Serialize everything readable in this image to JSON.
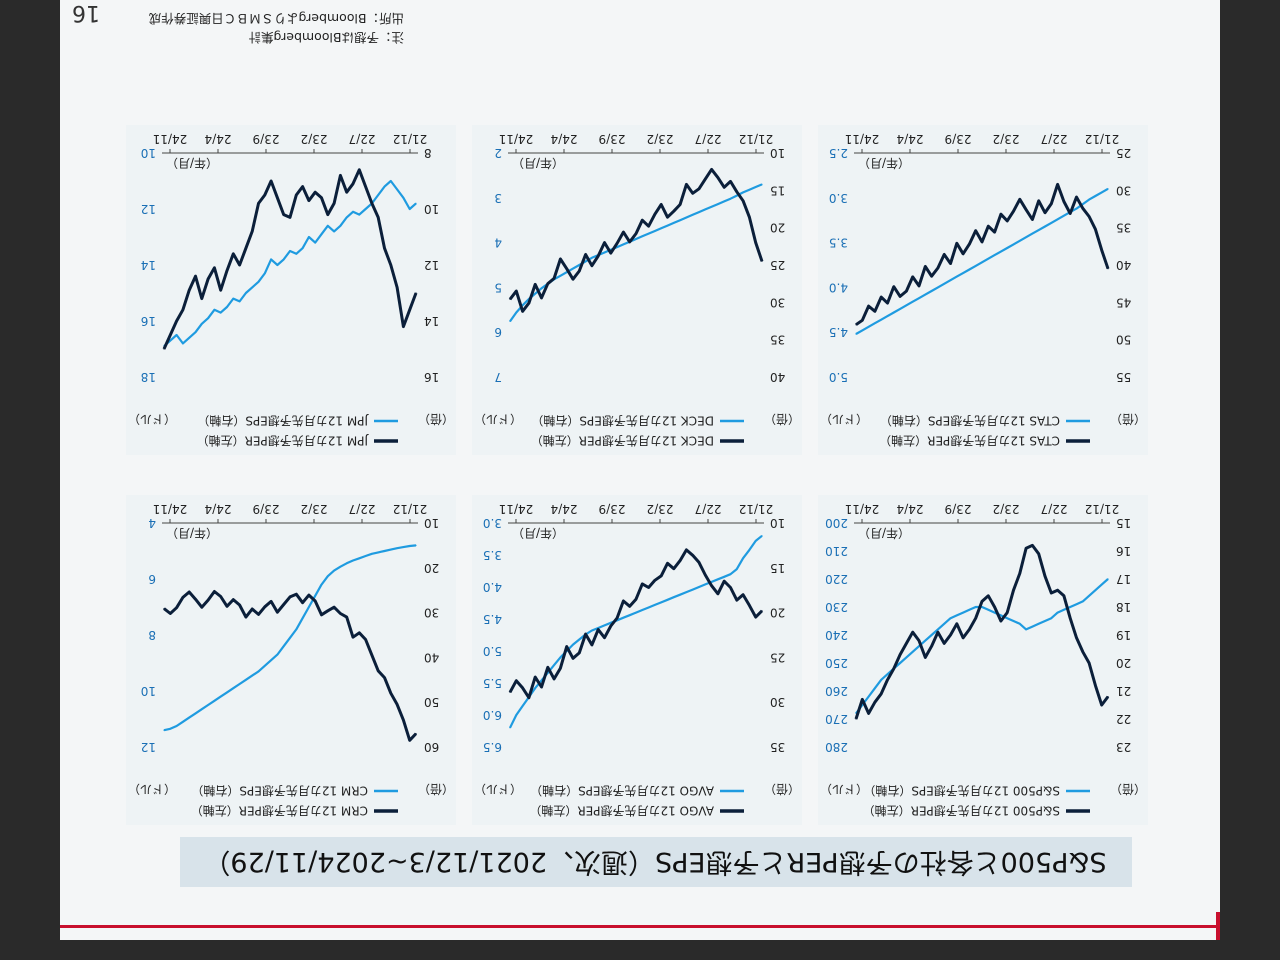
{
  "page": {
    "title": "S&P500と各社の予想PERと予想EPS（週次、2021/12/3~2024/11/29）",
    "page_number": "16",
    "note": "注：予想はBloomberg集計",
    "source": "出所：BloombergよりＳＭＢＣ日興証券作成",
    "colors": {
      "per": "#0b1f3a",
      "eps": "#1f9be0",
      "accent": "#c8102e",
      "banner": "#d8e3ea"
    }
  },
  "chart_data": [
    {
      "type": "line",
      "panel": "top-left",
      "legend": [
        "S&P500 12カ月先予想PER（左軸）",
        "S&P500 12カ月先予想EPS（右軸）"
      ],
      "left_unit": "（倍）",
      "right_unit": "（ドル）",
      "period_label": "（年/月）",
      "x_ticks": [
        "21/12",
        "22/7",
        "23/2",
        "23/9",
        "24/4",
        "24/11"
      ],
      "left_axis": {
        "min": 15,
        "max": 23,
        "ticks": [
          "15",
          "16",
          "17",
          "18",
          "19",
          "20",
          "21",
          "22",
          "23"
        ]
      },
      "right_axis": {
        "min": 200,
        "max": 280,
        "ticks": [
          "200",
          "210",
          "220",
          "230",
          "240",
          "250",
          "260",
          "270",
          "280"
        ]
      },
      "series": [
        {
          "name": "S&P500 12カ月先予想PER",
          "axis": "left",
          "values": [
            21.2,
            21.5,
            20.8,
            20.0,
            19.6,
            19.1,
            18.4,
            17.6,
            17.4,
            17.5,
            16.9,
            16.1,
            15.8,
            15.9,
            16.8,
            17.4,
            18.2,
            18.5,
            18.0,
            17.6,
            17.8,
            18.4,
            18.8,
            19.1,
            18.6,
            19.0,
            19.3,
            18.9,
            19.4,
            19.8,
            19.2,
            18.9,
            19.3,
            19.7,
            20.2,
            20.6,
            21.1,
            21.4,
            21.8,
            21.3,
            22.0
          ]
        },
        {
          "name": "S&P500 12カ月先予想EPS",
          "axis": "right",
          "values": [
            220,
            222,
            224,
            226,
            228,
            229,
            230,
            231,
            232,
            234,
            235,
            236,
            237,
            238,
            236,
            235,
            234,
            233,
            232,
            231,
            230,
            230,
            231,
            232,
            233,
            234,
            236,
            238,
            240,
            242,
            244,
            246,
            248,
            250,
            252,
            254,
            256,
            259,
            262,
            265,
            268
          ]
        }
      ]
    },
    {
      "type": "line",
      "panel": "top-middle",
      "legend": [
        "AVGO 12カ月先予想PER（左軸）",
        "AVGO 12カ月先予想EPS（右軸）"
      ],
      "left_unit": "（倍）",
      "right_unit": "（ドル）",
      "period_label": "（年/月）",
      "x_ticks": [
        "21/12",
        "22/7",
        "23/2",
        "23/9",
        "24/4",
        "24/11"
      ],
      "left_axis": {
        "min": 10,
        "max": 35,
        "ticks": [
          "10",
          "15",
          "20",
          "25",
          "30",
          "35"
        ]
      },
      "right_axis": {
        "min": 3.0,
        "max": 6.5,
        "ticks": [
          "3.0",
          "3.5",
          "4.0",
          "4.5",
          "5.0",
          "5.5",
          "6.0",
          "6.5"
        ]
      },
      "series": [
        {
          "name": "AVGO 12カ月先予想PER",
          "axis": "left",
          "values": [
            19.8,
            20.5,
            19.2,
            18.0,
            18.6,
            17.2,
            16.5,
            17.9,
            17.0,
            15.8,
            14.4,
            13.6,
            13.0,
            14.2,
            15.1,
            14.5,
            15.9,
            16.4,
            17.2,
            16.8,
            18.5,
            19.3,
            18.7,
            20.6,
            21.5,
            22.8,
            21.9,
            23.6,
            22.4,
            24.5,
            25.1,
            23.8,
            26.2,
            27.4,
            26.1,
            28.3,
            27.2,
            29.5,
            28.4,
            27.6,
            28.9
          ]
        },
        {
          "name": "AVGO 12カ月先予想EPS",
          "axis": "right",
          "values": [
            3.2,
            3.28,
            3.42,
            3.55,
            3.72,
            3.8,
            3.84,
            3.88,
            3.92,
            3.96,
            4.0,
            4.04,
            4.08,
            4.12,
            4.16,
            4.2,
            4.24,
            4.28,
            4.32,
            4.36,
            4.4,
            4.44,
            4.48,
            4.52,
            4.56,
            4.6,
            4.64,
            4.68,
            4.74,
            4.82,
            4.9,
            5.0,
            5.1,
            5.22,
            5.34,
            5.46,
            5.58,
            5.72,
            5.86,
            6.0,
            6.2
          ]
        }
      ]
    },
    {
      "type": "line",
      "panel": "top-right",
      "legend": [
        "CRM 12カ月先予想PER（左軸）",
        "CRM 12カ月先予想EPS（右軸）"
      ],
      "left_unit": "（倍）",
      "right_unit": "（ドル）",
      "period_label": "（年/月）",
      "x_ticks": [
        "21/12",
        "22/7",
        "23/2",
        "23/9",
        "24/4",
        "24/11"
      ],
      "left_axis": {
        "min": 10,
        "max": 60,
        "ticks": [
          "10",
          "20",
          "30",
          "40",
          "50",
          "60"
        ]
      },
      "right_axis": {
        "min": 4,
        "max": 12,
        "ticks": [
          "4",
          "6",
          "8",
          "10",
          "12"
        ]
      },
      "series": [
        {
          "name": "CRM 12カ月先予想PER",
          "axis": "left",
          "values": [
            57.0,
            58.5,
            54.0,
            50.5,
            48.0,
            44.5,
            43.0,
            39.5,
            36.0,
            34.5,
            35.5,
            31.0,
            30.2,
            28.8,
            29.6,
            30.5,
            27.4,
            26.1,
            27.8,
            25.9,
            26.5,
            28.2,
            29.9,
            27.5,
            28.7,
            30.4,
            29.2,
            31.0,
            28.3,
            27.1,
            28.6,
            26.4,
            25.3,
            27.2,
            28.8,
            27.0,
            25.4,
            26.6,
            28.9,
            30.2,
            29.1
          ]
        },
        {
          "name": "CRM 12カ月先予想EPS",
          "axis": "right",
          "values": [
            4.8,
            4.82,
            4.86,
            4.9,
            4.95,
            5.0,
            5.05,
            5.1,
            5.18,
            5.26,
            5.34,
            5.44,
            5.56,
            5.7,
            5.9,
            6.2,
            6.6,
            7.0,
            7.4,
            7.8,
            8.1,
            8.4,
            8.7,
            8.9,
            9.1,
            9.3,
            9.45,
            9.6,
            9.75,
            9.9,
            10.05,
            10.2,
            10.35,
            10.5,
            10.65,
            10.8,
            10.95,
            11.1,
            11.25,
            11.35,
            11.4
          ]
        }
      ]
    },
    {
      "type": "line",
      "panel": "bottom-left",
      "legend": [
        "CTAS 12カ月先予想PER（左軸）",
        "CTAS 12カ月先予想EPS（右軸）"
      ],
      "left_unit": "（倍）",
      "right_unit": "（ドル）",
      "period_label": "（年/月）",
      "x_ticks": [
        "21/12",
        "22/7",
        "23/2",
        "23/9",
        "24/4",
        "24/11"
      ],
      "left_axis": {
        "min": 25,
        "max": 55,
        "ticks": [
          "25",
          "30",
          "35",
          "40",
          "45",
          "50",
          "55"
        ]
      },
      "right_axis": {
        "min": 2.5,
        "max": 5.0,
        "ticks": [
          "2.5",
          "3.0",
          "3.5",
          "4.0",
          "4.5",
          "5.0"
        ]
      },
      "series": [
        {
          "name": "CTAS 12カ月先予想PER",
          "axis": "left",
          "values": [
            40.5,
            38.0,
            35.2,
            33.5,
            32.4,
            30.9,
            33.1,
            31.5,
            29.2,
            31.8,
            33.0,
            31.4,
            33.9,
            32.6,
            31.2,
            32.8,
            34.1,
            33.2,
            35.6,
            34.8,
            36.9,
            35.4,
            37.2,
            38.5,
            37.1,
            39.8,
            38.6,
            40.4,
            41.5,
            40.2,
            42.8,
            41.6,
            43.5,
            44.2,
            42.9,
            45.1,
            44.3,
            46.2,
            45.5,
            47.4,
            48.0
          ]
        },
        {
          "name": "CTAS 12カ月先予想EPS",
          "axis": "right",
          "values": [
            2.9,
            2.94,
            2.98,
            3.02,
            3.07,
            3.12,
            3.16,
            3.2,
            3.24,
            3.28,
            3.32,
            3.36,
            3.4,
            3.44,
            3.48,
            3.52,
            3.56,
            3.6,
            3.64,
            3.68,
            3.72,
            3.76,
            3.8,
            3.84,
            3.88,
            3.92,
            3.96,
            4.0,
            4.04,
            4.08,
            4.12,
            4.16,
            4.2,
            4.24,
            4.28,
            4.32,
            4.36,
            4.4,
            4.44,
            4.48,
            4.52
          ]
        }
      ]
    },
    {
      "type": "line",
      "panel": "bottom-middle",
      "legend": [
        "DECK 12カ月先予想PER（左軸）",
        "DECK 12カ月先予想EPS（右軸）"
      ],
      "left_unit": "（倍）",
      "right_unit": "（ドル）",
      "period_label": "（年/月）",
      "x_ticks": [
        "21/12",
        "22/7",
        "23/2",
        "23/9",
        "24/4",
        "24/11"
      ],
      "left_axis": {
        "min": 10,
        "max": 40,
        "ticks": [
          "10",
          "15",
          "20",
          "25",
          "30",
          "35",
          "40"
        ]
      },
      "right_axis": {
        "min": 2,
        "max": 7,
        "ticks": [
          "2",
          "3",
          "4",
          "5",
          "6",
          "7"
        ]
      },
      "series": [
        {
          "name": "DECK 12カ月先予想PER",
          "axis": "left",
          "values": [
            24.5,
            22.0,
            18.6,
            16.4,
            15.2,
            13.8,
            14.6,
            13.3,
            12.2,
            13.5,
            14.8,
            15.4,
            14.2,
            16.9,
            17.8,
            18.6,
            16.9,
            18.2,
            19.8,
            19.0,
            20.8,
            21.9,
            20.6,
            22.1,
            23.4,
            22.0,
            23.8,
            25.1,
            23.6,
            25.8,
            26.9,
            25.5,
            24.2,
            26.8,
            27.5,
            29.4,
            27.6,
            30.1,
            31.2,
            28.5,
            29.6
          ]
        },
        {
          "name": "DECK 12カ月先予想EPS",
          "axis": "right",
          "values": [
            2.7,
            2.76,
            2.82,
            2.88,
            2.95,
            3.02,
            3.08,
            3.14,
            3.2,
            3.26,
            3.32,
            3.38,
            3.44,
            3.5,
            3.56,
            3.62,
            3.68,
            3.74,
            3.8,
            3.86,
            3.92,
            3.98,
            4.04,
            4.1,
            4.16,
            4.22,
            4.28,
            4.34,
            4.42,
            4.5,
            4.58,
            4.66,
            4.74,
            4.82,
            4.92,
            5.02,
            5.14,
            5.26,
            5.4,
            5.56,
            5.76
          ]
        }
      ]
    },
    {
      "type": "line",
      "panel": "bottom-right",
      "legend": [
        "JPM 12カ月先予想PER（左軸）",
        "JPM 12カ月先予想EPS（右軸）"
      ],
      "left_unit": "（倍）",
      "right_unit": "（ドル）",
      "period_label": "（年/月）",
      "x_ticks": [
        "21/12",
        "22/7",
        "23/2",
        "23/9",
        "24/4",
        "24/11"
      ],
      "left_axis": {
        "min": 8,
        "max": 16,
        "ticks": [
          "8",
          "10",
          "12",
          "14",
          "16"
        ]
      },
      "right_axis": {
        "min": 10,
        "max": 18,
        "ticks": [
          "10",
          "12",
          "14",
          "16",
          "18"
        ]
      },
      "series": [
        {
          "name": "JPM 12カ月先予想PER",
          "axis": "left",
          "values": [
            13.0,
            13.6,
            14.2,
            12.8,
            12.0,
            11.4,
            10.3,
            9.8,
            9.2,
            8.6,
            9.1,
            9.4,
            8.8,
            9.8,
            10.2,
            9.6,
            9.4,
            9.7,
            9.2,
            9.5,
            10.3,
            10.2,
            9.6,
            9.0,
            9.5,
            9.8,
            10.8,
            11.4,
            12.0,
            11.6,
            12.2,
            12.9,
            12.1,
            12.5,
            13.2,
            12.4,
            12.9,
            13.6,
            14.0,
            14.5,
            15.0
          ]
        },
        {
          "name": "JPM 12カ月先予想EPS",
          "axis": "right",
          "values": [
            11.8,
            12.0,
            11.6,
            11.3,
            11.0,
            11.2,
            11.5,
            11.8,
            12.0,
            12.2,
            12.1,
            12.3,
            12.6,
            12.8,
            12.6,
            12.9,
            13.2,
            13.0,
            13.4,
            13.6,
            13.5,
            13.8,
            14.0,
            13.8,
            14.3,
            14.6,
            14.8,
            15.0,
            15.3,
            15.2,
            15.5,
            15.7,
            15.6,
            15.9,
            16.1,
            16.4,
            16.6,
            16.8,
            16.5,
            16.7,
            16.9
          ]
        }
      ]
    }
  ]
}
